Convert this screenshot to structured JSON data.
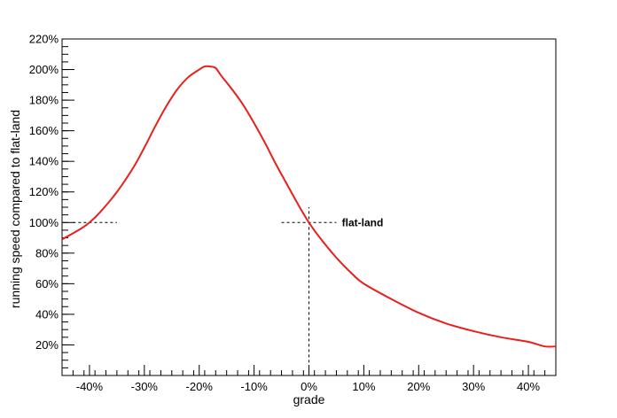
{
  "chart_data": {
    "type": "line",
    "title": "",
    "xlabel": "grade",
    "ylabel": "running speed compared to flat-land",
    "xlim": [
      -0.45,
      0.45
    ],
    "ylim": [
      0.0,
      2.2
    ],
    "x_ticks": [
      {
        "value": -0.4,
        "label": "-40%"
      },
      {
        "value": -0.3,
        "label": "-30%"
      },
      {
        "value": -0.2,
        "label": "-20%"
      },
      {
        "value": -0.1,
        "label": "-10%"
      },
      {
        "value": 0.0,
        "label": "0%"
      },
      {
        "value": 0.1,
        "label": "10%"
      },
      {
        "value": 0.2,
        "label": "20%"
      },
      {
        "value": 0.3,
        "label": "30%"
      },
      {
        "value": 0.4,
        "label": "40%"
      }
    ],
    "y_ticks": [
      {
        "value": 0.2,
        "label": "20%"
      },
      {
        "value": 0.4,
        "label": "40%"
      },
      {
        "value": 0.6,
        "label": "60%"
      },
      {
        "value": 0.8,
        "label": "80%"
      },
      {
        "value": 1.0,
        "label": "100%"
      },
      {
        "value": 1.2,
        "label": "120%"
      },
      {
        "value": 1.4,
        "label": "140%"
      },
      {
        "value": 1.6,
        "label": "160%"
      },
      {
        "value": 1.8,
        "label": "180%"
      },
      {
        "value": 2.0,
        "label": "200%"
      },
      {
        "value": 2.2,
        "label": "220%"
      }
    ],
    "grid": false,
    "series": [
      {
        "color": "#e8201c",
        "x": [
          -0.45,
          -0.42,
          -0.4,
          -0.38,
          -0.35,
          -0.32,
          -0.3,
          -0.28,
          -0.26,
          -0.24,
          -0.22,
          -0.2,
          -0.19,
          -0.18,
          -0.17,
          -0.16,
          -0.14,
          -0.12,
          -0.1,
          -0.08,
          -0.06,
          -0.04,
          -0.02,
          0.0,
          0.02,
          0.05,
          0.08,
          0.1,
          0.15,
          0.2,
          0.25,
          0.3,
          0.35,
          0.4,
          0.43,
          0.45
        ],
        "y": [
          0.89,
          0.95,
          1.0,
          1.07,
          1.2,
          1.36,
          1.49,
          1.63,
          1.76,
          1.87,
          1.95,
          2.0,
          2.02,
          2.02,
          2.01,
          1.96,
          1.87,
          1.77,
          1.65,
          1.52,
          1.38,
          1.25,
          1.12,
          1.0,
          0.9,
          0.77,
          0.66,
          0.6,
          0.5,
          0.41,
          0.34,
          0.29,
          0.25,
          0.22,
          0.19,
          0.19
        ]
      }
    ],
    "reference_lines": [
      {
        "kind": "h",
        "y": 1.0,
        "x_from": -0.43,
        "x_to": -0.35
      },
      {
        "kind": "h",
        "y": 1.0,
        "x_from": -0.05,
        "x_to": 0.05
      },
      {
        "kind": "v",
        "x": 0.0,
        "y_from": 0.05,
        "y_to": 1.1
      }
    ],
    "annotations": [
      {
        "text": "flat-land",
        "x": 0.06,
        "y": 1.0
      }
    ]
  }
}
